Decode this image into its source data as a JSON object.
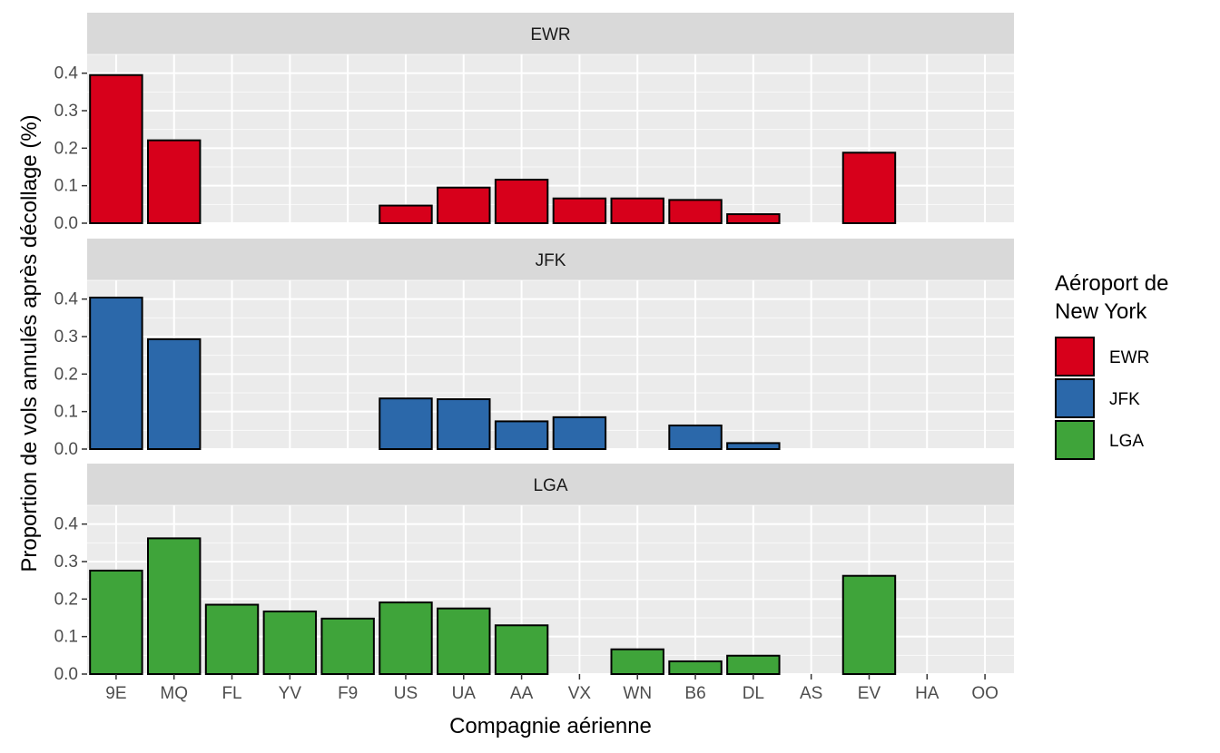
{
  "chart_data": {
    "type": "bar",
    "xlabel": "Compagnie aérienne",
    "ylabel": "Proportion de vols annulés après décollage (%)",
    "ylim": [
      0,
      0.45
    ],
    "yticks": [
      0.0,
      0.1,
      0.2,
      0.3,
      0.4
    ],
    "ytick_labels": [
      "0.0",
      "0.1",
      "0.2",
      "0.3",
      "0.4"
    ],
    "categories": [
      "9E",
      "MQ",
      "FL",
      "YV",
      "F9",
      "US",
      "UA",
      "AA",
      "VX",
      "WN",
      "B6",
      "DL",
      "AS",
      "EV",
      "HA",
      "OO"
    ],
    "facets": [
      "EWR",
      "JFK",
      "LGA"
    ],
    "legend": {
      "title_lines": [
        "Aéroport de",
        "New York"
      ],
      "position": "right"
    },
    "grid": true,
    "series": [
      {
        "name": "EWR",
        "color": "#d7001b",
        "values": [
          0.395,
          0.221,
          null,
          null,
          null,
          0.047,
          0.095,
          0.116,
          0.066,
          0.066,
          0.062,
          0.024,
          null,
          0.188,
          null,
          null
        ]
      },
      {
        "name": "JFK",
        "color": "#2b68aa",
        "values": [
          0.404,
          0.293,
          null,
          null,
          null,
          0.135,
          0.133,
          0.074,
          0.085,
          null,
          0.063,
          0.016,
          null,
          null,
          null,
          null
        ]
      },
      {
        "name": "LGA",
        "color": "#3fa43a",
        "values": [
          0.276,
          0.362,
          0.185,
          0.167,
          0.148,
          0.191,
          0.175,
          0.13,
          null,
          0.066,
          0.034,
          0.049,
          null,
          0.262,
          null,
          null
        ]
      }
    ]
  }
}
